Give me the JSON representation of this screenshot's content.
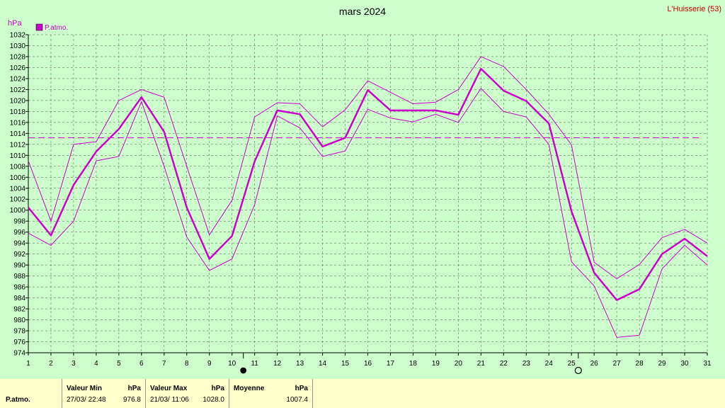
{
  "title": "mars 2024",
  "station": "L'Huisserie (53)",
  "chart_data": {
    "type": "line",
    "ylabel": "hPa",
    "ylim": [
      974,
      1032
    ],
    "y_ticks": [
      974,
      976,
      978,
      980,
      982,
      984,
      986,
      988,
      990,
      992,
      994,
      996,
      998,
      1000,
      1002,
      1004,
      1006,
      1008,
      1010,
      1012,
      1014,
      1016,
      1018,
      1020,
      1022,
      1024,
      1026,
      1028,
      1030,
      1032
    ],
    "x": [
      1,
      2,
      3,
      4,
      5,
      6,
      7,
      8,
      9,
      10,
      11,
      12,
      13,
      14,
      15,
      16,
      17,
      18,
      19,
      20,
      21,
      22,
      23,
      24,
      25,
      26,
      27,
      28,
      29,
      30,
      31
    ],
    "grid": true,
    "legend_position": "top-left",
    "color": "#cc00cc",
    "series": [
      {
        "name": "P.atmo.",
        "role": "mean",
        "values": [
          1000.5,
          995.4,
          1004.6,
          1010.7,
          1014.8,
          1020.6,
          1014.3,
          1000.5,
          991.1,
          995.3,
          1008.9,
          1018.2,
          1017.5,
          1011.6,
          1013.2,
          1021.9,
          1018.2,
          1018.2,
          1018.2,
          1017.4,
          1025.8,
          1021.8,
          1019.9,
          1015.8,
          999.8,
          988.6,
          983.6,
          985.6,
          992.0,
          994.8,
          991.6
        ]
      },
      {
        "role": "max",
        "values": [
          1009.0,
          998.0,
          1012.0,
          1012.5,
          1020.0,
          1022.0,
          1020.6,
          1008.0,
          995.5,
          1001.8,
          1017.0,
          1019.6,
          1019.4,
          1015.2,
          1018.3,
          1023.6,
          1021.5,
          1019.4,
          1019.7,
          1022.0,
          1028.0,
          1026.2,
          1022.0,
          1017.5,
          1011.9,
          990.5,
          987.5,
          990.1,
          995.0,
          996.5,
          994.0
        ]
      },
      {
        "role": "min",
        "values": [
          995.8,
          993.6,
          998.0,
          1009.0,
          1009.8,
          1019.8,
          1008.0,
          995.1,
          989.0,
          991.1,
          1001.0,
          1017.2,
          1015.0,
          1009.8,
          1010.8,
          1018.4,
          1016.8,
          1016.1,
          1017.5,
          1016.0,
          1022.2,
          1018.0,
          1017.0,
          1012.0,
          990.6,
          986.2,
          976.8,
          977.2,
          989.3,
          993.6,
          990.0
        ]
      }
    ],
    "reference_line": {
      "value": 1013.2,
      "style": "dashed"
    },
    "moon_markers": [
      {
        "symbol": "new-moon",
        "day": 10.5
      },
      {
        "symbol": "full-moon",
        "day": 25.3
      }
    ]
  },
  "footer": {
    "row_label": "P.atmo.",
    "min_header": "Valeur Min",
    "min_unit": "hPa",
    "min_date": "27/03/  22:48",
    "min_value": "976.8",
    "max_header": "Valeur Max",
    "max_unit": "hPa",
    "max_date": "21/03/  11:06",
    "max_value": "1028.0",
    "mean_header": "Moyenne",
    "mean_unit": "hPa",
    "mean_value": "1007.4"
  }
}
